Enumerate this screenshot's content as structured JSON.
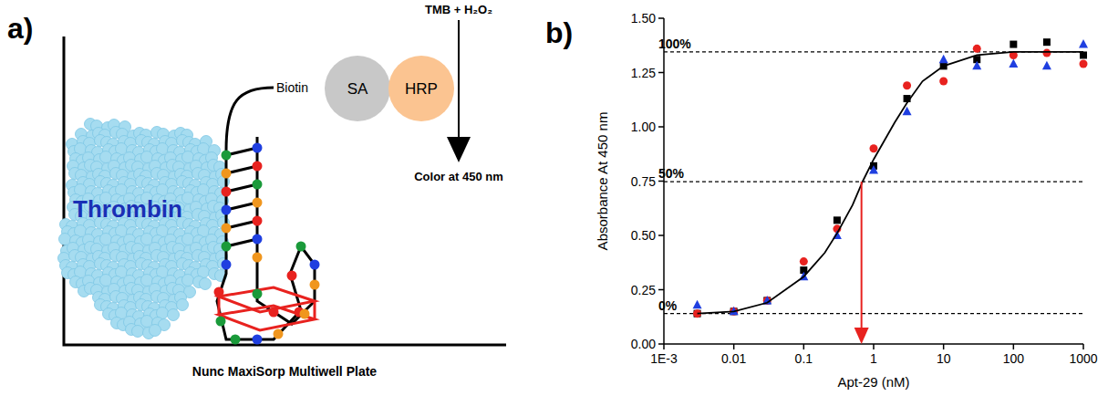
{
  "diagram": {
    "letter": "a)",
    "protein": "Thrombin",
    "biotin": "Biotin",
    "streptavidin": "SA",
    "enzyme": "HRP",
    "substrate": "TMB + H₂O₂",
    "readout": "Color at 450 nm",
    "surface": "Nunc MaxiSorp Multiwell Plate"
  },
  "chart_data": {
    "type": "scatter",
    "panel_label": "b)",
    "x_label": "Apt-29 (nM)",
    "y_label": "Absorbance At 450 nm",
    "log": "x",
    "grid": false,
    "xlim": [
      0.001,
      1000
    ],
    "xticks": [
      {
        "value": 0.001,
        "label": "1E-3"
      },
      0.01,
      0.1,
      1,
      10,
      100,
      1000
    ],
    "ylim": [
      0,
      1.5
    ],
    "yticks": [
      {
        "value": 0,
        "label": "0.00"
      },
      {
        "value": 0.25,
        "label": "0.25"
      },
      {
        "value": 0.5,
        "label": "0.50"
      },
      {
        "value": 0.75,
        "label": "0.75"
      },
      {
        "value": 1,
        "label": "1.00"
      },
      {
        "value": 1.25,
        "label": "1.25"
      },
      {
        "value": 1.5,
        "label": "1.50"
      }
    ],
    "series": [
      {
        "type": "scatter",
        "color": "#000000",
        "marker": "square",
        "x": [
          0.003,
          0.01,
          0.03,
          0.1,
          0.3,
          1,
          3,
          10,
          30,
          100,
          300,
          1000
        ],
        "values": [
          0.14,
          0.15,
          0.2,
          0.34,
          0.57,
          0.82,
          1.13,
          1.28,
          1.31,
          1.38,
          1.39,
          1.33
        ]
      },
      {
        "type": "scatter",
        "color": "#e8221f",
        "marker": "circle",
        "x": [
          0.003,
          0.01,
          0.03,
          0.1,
          0.3,
          1,
          3,
          10,
          30,
          100,
          300,
          1000
        ],
        "values": [
          0.14,
          0.15,
          0.2,
          0.38,
          0.53,
          0.9,
          1.19,
          1.21,
          1.36,
          1.33,
          1.34,
          1.29
        ]
      },
      {
        "type": "scatter",
        "color": "#1f3fe0",
        "marker": "triangle",
        "x": [
          0.003,
          0.01,
          0.03,
          0.1,
          0.3,
          1,
          3,
          10,
          30,
          100,
          300,
          1000
        ],
        "values": [
          0.18,
          0.15,
          0.2,
          0.31,
          0.5,
          0.8,
          1.07,
          1.31,
          1.28,
          1.29,
          1.28,
          1.38
        ]
      },
      {
        "type": "line",
        "color": "#000000",
        "line_style": "solid",
        "x": [
          0.003,
          0.01,
          0.03,
          0.1,
          0.2,
          0.3,
          0.5,
          0.7,
          1,
          2,
          3,
          5,
          10,
          30,
          100,
          1000
        ],
        "values": [
          0.14,
          0.15,
          0.19,
          0.31,
          0.42,
          0.51,
          0.64,
          0.75,
          0.85,
          1.02,
          1.11,
          1.21,
          1.28,
          1.33,
          1.345,
          1.345
        ]
      }
    ],
    "reference_lines": [
      {
        "label": "100%",
        "value": 1.345
      },
      {
        "label": "50%",
        "value": 0.7475
      },
      {
        "label": "0%",
        "value": 0.14
      }
    ],
    "ec50_arrow": {
      "x": 0.67,
      "y": 0.7475
    }
  }
}
